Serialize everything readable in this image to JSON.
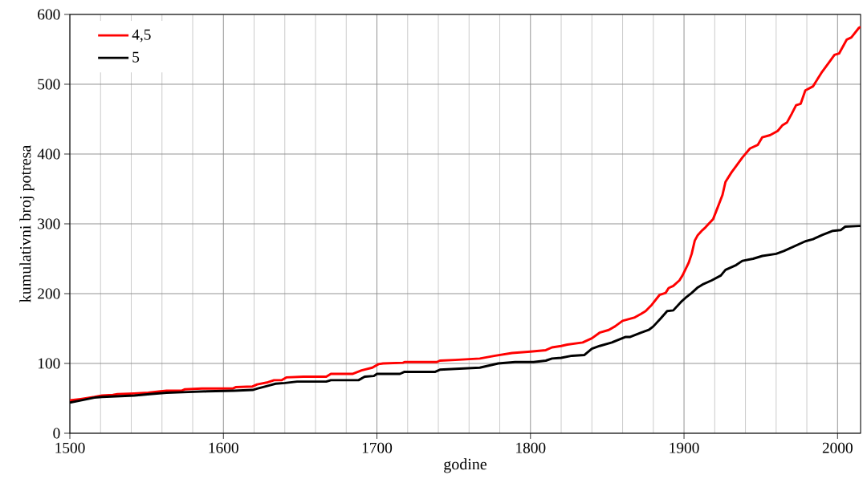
{
  "chart_data": {
    "type": "line",
    "xlabel": "godine",
    "ylabel": "kumulativni broj potresa",
    "xlim": [
      1500,
      2015
    ],
    "ylim": [
      0,
      600
    ],
    "xticks": [
      1500,
      {
        "value": 1520,
        "label": null
      },
      {
        "value": 1540,
        "label": null
      },
      {
        "value": 1560,
        "label": null
      },
      {
        "value": 1580,
        "label": null
      },
      1600,
      {
        "value": 1620,
        "label": null
      },
      {
        "value": 1640,
        "label": null
      },
      {
        "value": 1660,
        "label": null
      },
      {
        "value": 1680,
        "label": null
      },
      1700,
      {
        "value": 1720,
        "label": null
      },
      {
        "value": 1740,
        "label": null
      },
      {
        "value": 1760,
        "label": null
      },
      {
        "value": 1780,
        "label": null
      },
      1800,
      {
        "value": 1820,
        "label": null
      },
      {
        "value": 1840,
        "label": null
      },
      {
        "value": 1860,
        "label": null
      },
      {
        "value": 1880,
        "label": null
      },
      1900,
      {
        "value": 1920,
        "label": null
      },
      {
        "value": 1940,
        "label": null
      },
      {
        "value": 1960,
        "label": null
      },
      {
        "value": 1980,
        "label": null
      },
      2000
    ],
    "yticks": [
      0,
      100,
      200,
      300,
      400,
      500,
      600
    ],
    "grid": true,
    "legend": "top left",
    "series": [
      {
        "name": "4,5",
        "color": "#ff0000",
        "x": [
          1500,
          1507,
          1516,
          1521,
          1528,
          1531,
          1542,
          1551,
          1559,
          1563,
          1573,
          1575,
          1586,
          1606,
          1608,
          1619,
          1622,
          1629,
          1633,
          1638,
          1641,
          1652,
          1667,
          1670,
          1684,
          1690,
          1697,
          1701,
          1704,
          1717,
          1718,
          1739,
          1741,
          1751,
          1767,
          1777,
          1788,
          1800,
          1810,
          1814,
          1820,
          1824,
          1834,
          1840,
          1845,
          1851,
          1855,
          1860,
          1868,
          1872,
          1875,
          1879,
          1884,
          1888,
          1890,
          1893,
          1897,
          1899,
          1903,
          1905,
          1907,
          1909,
          1912,
          1914,
          1919,
          1922,
          1925,
          1927,
          1931,
          1934,
          1938,
          1943,
          1948,
          1951,
          1956,
          1961,
          1964,
          1967,
          1970,
          1973,
          1976,
          1979,
          1984,
          1990,
          1995,
          1998,
          2001,
          2006,
          2009,
          2014,
          2015
        ],
        "values": [
          47,
          49,
          52,
          54,
          55,
          56,
          57,
          58,
          60,
          61,
          61,
          63,
          64,
          64,
          66,
          67,
          70,
          73,
          76,
          76,
          80,
          81,
          81,
          85,
          85,
          90,
          94,
          99,
          100,
          101,
          102,
          102,
          104,
          105,
          107,
          111,
          115,
          117,
          119,
          123,
          125,
          127,
          130,
          136,
          144,
          148,
          153,
          161,
          166,
          171,
          175,
          184,
          198,
          201,
          208,
          211,
          219,
          226,
          244,
          257,
          276,
          284,
          291,
          295,
          307,
          324,
          341,
          360,
          374,
          383,
          395,
          408,
          413,
          424,
          427,
          433,
          441,
          445,
          457,
          470,
          472,
          491,
          497,
          518,
          533,
          542,
          544,
          564,
          567,
          581,
          582
        ]
      },
      {
        "name": "5",
        "color": "#000000",
        "x": [
          1500,
          1507,
          1516,
          1521,
          1542,
          1552,
          1563,
          1577,
          1589,
          1607,
          1619,
          1622,
          1629,
          1634,
          1640,
          1648,
          1667,
          1670,
          1688,
          1692,
          1698,
          1700,
          1715,
          1718,
          1738,
          1741,
          1759,
          1767,
          1779,
          1790,
          1802,
          1810,
          1814,
          1820,
          1827,
          1835,
          1840,
          1845,
          1853,
          1862,
          1865,
          1872,
          1877,
          1880,
          1885,
          1889,
          1893,
          1898,
          1901,
          1905,
          1909,
          1912,
          1918,
          1924,
          1927,
          1934,
          1938,
          1945,
          1951,
          1960,
          1965,
          1972,
          1979,
          1984,
          1990,
          1997,
          2002,
          2005,
          2014,
          2015
        ],
        "values": [
          44,
          47,
          51,
          52,
          54,
          56,
          58,
          59,
          60,
          61,
          62,
          64,
          68,
          71,
          72,
          74,
          74,
          76,
          76,
          81,
          82,
          85,
          85,
          88,
          88,
          91,
          93,
          94,
          100,
          102,
          102,
          104,
          107,
          108,
          111,
          112,
          121,
          125,
          130,
          138,
          138,
          144,
          148,
          153,
          165,
          175,
          176,
          188,
          194,
          201,
          209,
          213,
          219,
          226,
          234,
          241,
          247,
          250,
          254,
          257,
          261,
          268,
          275,
          278,
          284,
          290,
          291,
          296,
          297,
          297
        ]
      }
    ]
  }
}
